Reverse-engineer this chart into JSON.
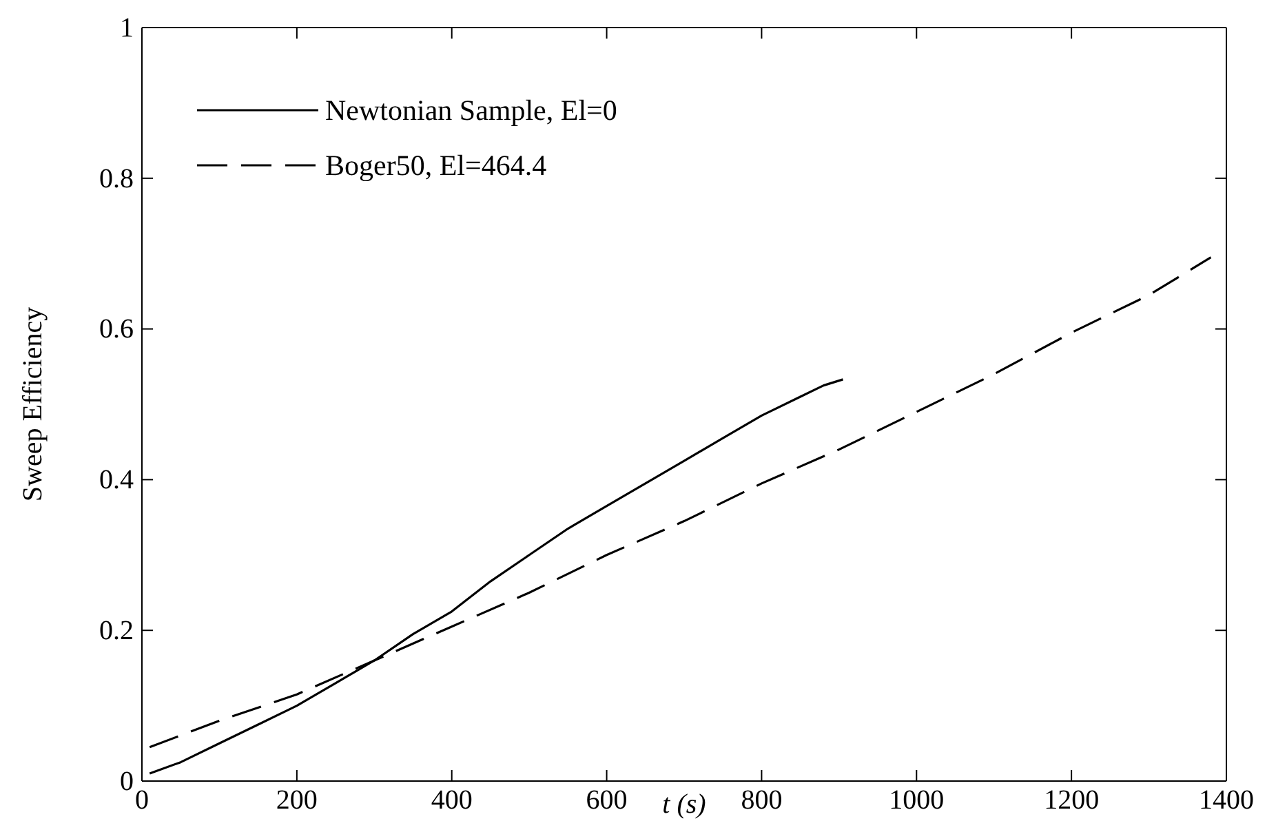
{
  "chart_data": {
    "type": "line",
    "xlabel": "t (s)",
    "ylabel": "Sweep Efficiency",
    "xlim": [
      0,
      1400
    ],
    "ylim": [
      0,
      1
    ],
    "xticks": [
      0,
      200,
      400,
      600,
      800,
      1000,
      1200,
      1400
    ],
    "yticks": [
      0,
      0.2,
      0.4,
      0.6,
      0.8,
      1
    ],
    "grid": false,
    "legend": "top left",
    "series": [
      {
        "name": "Newtonian Sample, El=0",
        "color": "#000000",
        "line_style": "solid",
        "x": [
          10,
          50,
          100,
          150,
          200,
          250,
          300,
          350,
          400,
          450,
          500,
          550,
          600,
          650,
          700,
          750,
          800,
          850,
          880,
          905
        ],
        "values": [
          0.01,
          0.025,
          0.05,
          0.075,
          0.1,
          0.13,
          0.16,
          0.195,
          0.225,
          0.265,
          0.3,
          0.335,
          0.365,
          0.395,
          0.425,
          0.455,
          0.485,
          0.51,
          0.525,
          0.533
        ]
      },
      {
        "name": "Boger50, El=464.4",
        "color": "#000000",
        "line_style": "dashed",
        "x": [
          10,
          100,
          200,
          300,
          400,
          500,
          600,
          700,
          800,
          900,
          1000,
          1100,
          1200,
          1300,
          1380
        ],
        "values": [
          0.045,
          0.08,
          0.115,
          0.16,
          0.205,
          0.25,
          0.3,
          0.345,
          0.395,
          0.44,
          0.49,
          0.54,
          0.595,
          0.645,
          0.695
        ]
      }
    ]
  }
}
